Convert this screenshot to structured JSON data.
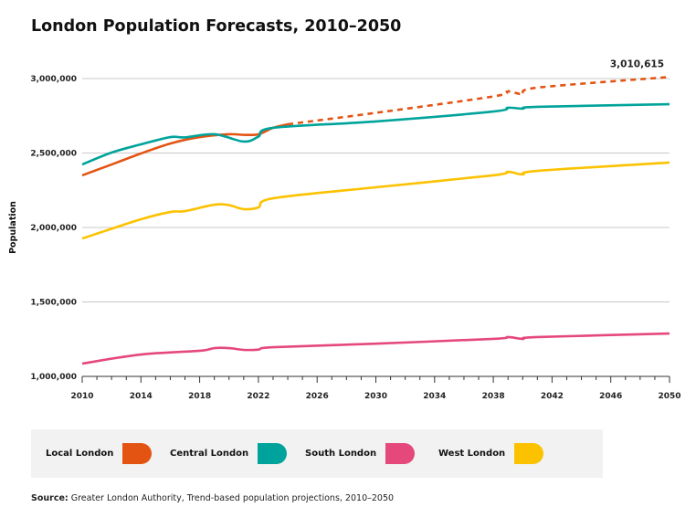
{
  "chart_data": {
    "type": "line",
    "title": "London Population Forecasts, 2010–2050",
    "xlabel": "",
    "ylabel": "Population",
    "xlim": [
      2010,
      2050
    ],
    "ylim": [
      1000000,
      3000000
    ],
    "x_ticks": [
      2010,
      2014,
      2018,
      2022,
      2026,
      2030,
      2034,
      2038,
      2042,
      2046,
      2050
    ],
    "y_ticks": [
      1000000,
      1500000,
      2000000,
      2500000,
      3000000
    ],
    "y_tick_labels": [
      "1,000,000",
      "1,500,000",
      "2,000,000",
      "2,500,000",
      "3,000,000"
    ],
    "grid": "horizontal",
    "legend_placement": "bottom",
    "projection_start": 2024,
    "annotation": {
      "text": "3,010,615",
      "x": 2050,
      "y": 3010615
    },
    "series": [
      {
        "name": "Local London",
        "color": "#e35413",
        "dashed_after": 2024,
        "points": [
          [
            2010,
            2350000
          ],
          [
            2012,
            2423000
          ],
          [
            2014,
            2497000
          ],
          [
            2016,
            2564000
          ],
          [
            2018,
            2607000
          ],
          [
            2020,
            2626000
          ],
          [
            2021,
            2622000
          ],
          [
            2022,
            2626000
          ],
          [
            2023,
            2669000
          ],
          [
            2024,
            2693000
          ],
          [
            2030,
            2770000
          ],
          [
            2038,
            2880000
          ],
          [
            2039,
            2914000
          ],
          [
            2040,
            2896000
          ],
          [
            2041,
            2939000
          ],
          [
            2050,
            3010615
          ]
        ]
      },
      {
        "name": "Central London",
        "color": "#00a39b",
        "points": [
          [
            2010,
            2423000
          ],
          [
            2012,
            2503000
          ],
          [
            2014,
            2558000
          ],
          [
            2016,
            2607000
          ],
          [
            2017,
            2605000
          ],
          [
            2019,
            2626000
          ],
          [
            2021,
            2577000
          ],
          [
            2022,
            2610000
          ],
          [
            2023,
            2669000
          ],
          [
            2030,
            2712000
          ],
          [
            2038,
            2779000
          ],
          [
            2039,
            2804000
          ],
          [
            2040,
            2798000
          ],
          [
            2041,
            2810000
          ],
          [
            2050,
            2828000
          ]
        ]
      },
      {
        "name": "South London",
        "color": "#e5487b",
        "points": [
          [
            2010,
            1086000
          ],
          [
            2014,
            1147000
          ],
          [
            2018,
            1172000
          ],
          [
            2019,
            1190000
          ],
          [
            2020,
            1190000
          ],
          [
            2021,
            1178000
          ],
          [
            2022,
            1180000
          ],
          [
            2023,
            1196000
          ],
          [
            2030,
            1220000
          ],
          [
            2038,
            1252000
          ],
          [
            2039,
            1264000
          ],
          [
            2040,
            1252000
          ],
          [
            2041,
            1264000
          ],
          [
            2050,
            1288000
          ]
        ]
      },
      {
        "name": "West London",
        "color": "#fcc200",
        "points": [
          [
            2010,
            1926000
          ],
          [
            2014,
            2055000
          ],
          [
            2016,
            2104000
          ],
          [
            2017,
            2110000
          ],
          [
            2019,
            2153000
          ],
          [
            2020,
            2150000
          ],
          [
            2021,
            2123000
          ],
          [
            2022,
            2135000
          ],
          [
            2023,
            2196000
          ],
          [
            2030,
            2270000
          ],
          [
            2038,
            2350000
          ],
          [
            2039,
            2374000
          ],
          [
            2040,
            2356000
          ],
          [
            2041,
            2380000
          ],
          [
            2050,
            2436000
          ]
        ]
      }
    ],
    "source_label": "Source:",
    "source": "Greater London Authority, Trend-based population projections, 2010–2050"
  }
}
